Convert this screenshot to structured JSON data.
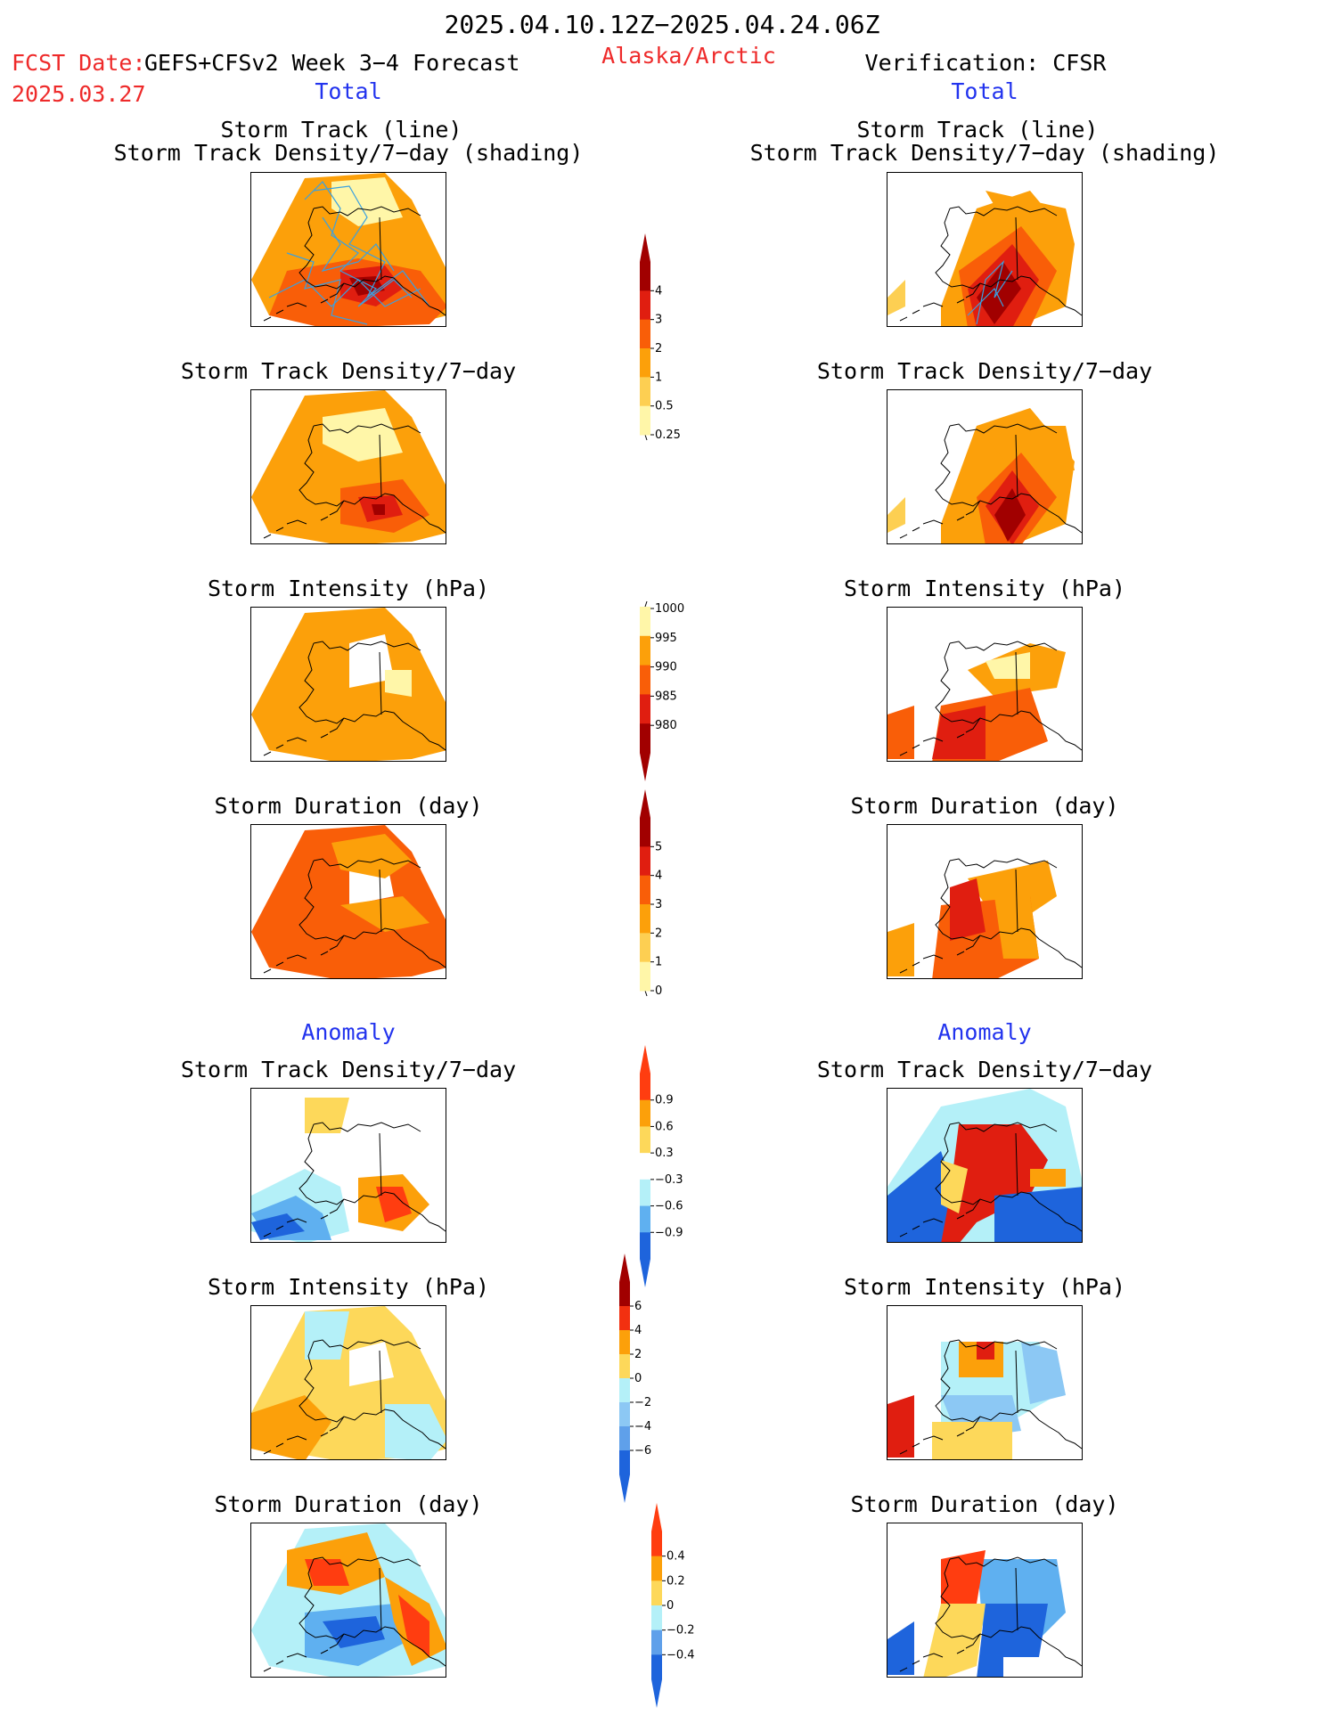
{
  "header": {
    "date_range": "2025.04.10.12Z−2025.04.24.06Z",
    "fcst_date_label": "FCST Date:",
    "fcst_date_value": "2025.03.27",
    "model": "GEFS+CFSv2 Week 3−4 Forecast",
    "region": "Alaska/Arctic",
    "verification": "Verification: CFSR"
  },
  "sections": {
    "total": "Total",
    "anomaly": "Anomaly"
  },
  "panel_titles": {
    "track_line": "Storm Track (line)",
    "track_shading": "Storm Track Density/7−day (shading)",
    "density": "Storm Track Density/7−day",
    "intensity": "Storm Intensity (hPa)",
    "duration": "Storm Duration (day)"
  },
  "colorbars": {
    "density_total": {
      "labels": [
        "4",
        "3",
        "2",
        "1",
        "0.5",
        "0.25"
      ],
      "colors": [
        "#a10000",
        "#e01e10",
        "#f95e08",
        "#fca00a",
        "#fdcf52",
        "#fff6a8"
      ]
    },
    "intensity_total": {
      "labels": [
        "1000",
        "995",
        "990",
        "985",
        "980"
      ],
      "colors": [
        "#fff6a8",
        "#fca00a",
        "#f95e08",
        "#e01e10",
        "#a10000"
      ]
    },
    "duration_total": {
      "labels": [
        "5",
        "4",
        "3",
        "2",
        "1",
        "0"
      ],
      "colors": [
        "#a10000",
        "#e01e10",
        "#f95e08",
        "#fca00a",
        "#fdcf52",
        "#fff6a8"
      ]
    },
    "density_anom": {
      "labels": [
        "0.9",
        "0.6",
        "0.3",
        "−0.3",
        "−0.6",
        "−0.9"
      ],
      "colors": [
        "#ff3d10",
        "#fca00a",
        "#fdd85a",
        "#ffffff",
        "#b4f0f8",
        "#5fb0f0",
        "#1e64dc"
      ]
    },
    "intensity_anom": {
      "labels": [
        "6",
        "4",
        "2",
        "0",
        "−2",
        "−4",
        "−6"
      ],
      "colors": [
        "#a10000",
        "#f23010",
        "#fca00a",
        "#fdd85a",
        "#b4f0f8",
        "#8cc8f4",
        "#5fa0ea",
        "#1e64dc"
      ]
    },
    "duration_anom": {
      "labels": [
        "0.4",
        "0.2",
        "0",
        "−0.2",
        "−0.4"
      ],
      "colors": [
        "#ff3d10",
        "#fca00a",
        "#fdd85a",
        "#b4f0f8",
        "#5fa0ea",
        "#1e64dc"
      ]
    }
  },
  "colors": {
    "title_red": "#ee2a2a",
    "section_blue": "#2233ee",
    "track_line": "#3aa0e0"
  }
}
